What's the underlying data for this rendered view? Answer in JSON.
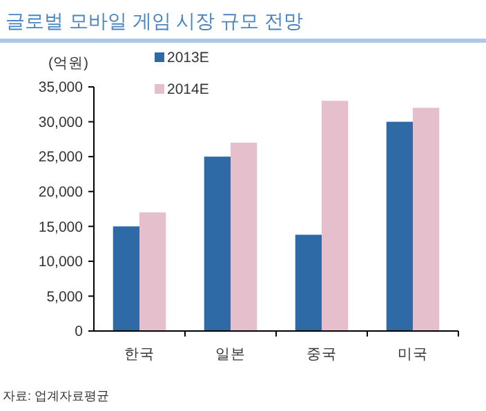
{
  "chart_data": {
    "type": "bar",
    "title": "글로벌 모바일 게임 시장 규모 전망",
    "ylabel": "(억원)",
    "categories": [
      "한국",
      "일본",
      "중국",
      "미국"
    ],
    "series": [
      {
        "name": "2013E",
        "color": "#2e6aa6",
        "values": [
          15000,
          25000,
          13800,
          30000
        ]
      },
      {
        "name": "2014E",
        "color": "#e6bfcc",
        "values": [
          17000,
          27000,
          33000,
          32000
        ]
      }
    ],
    "ylim": [
      0,
      35000
    ],
    "yticks": [
      {
        "value": 0,
        "label": "0"
      },
      {
        "value": 5000,
        "label": "5,000"
      },
      {
        "value": 10000,
        "label": "10,000"
      },
      {
        "value": 15000,
        "label": "15,000"
      },
      {
        "value": 20000,
        "label": "20,000"
      },
      {
        "value": 25000,
        "label": "25,000"
      },
      {
        "value": 30000,
        "label": "30,000"
      },
      {
        "value": 35000,
        "label": "35,000"
      }
    ],
    "grid": false,
    "legend": "top left",
    "annotations": [
      "자료: 업계자료평균"
    ]
  }
}
